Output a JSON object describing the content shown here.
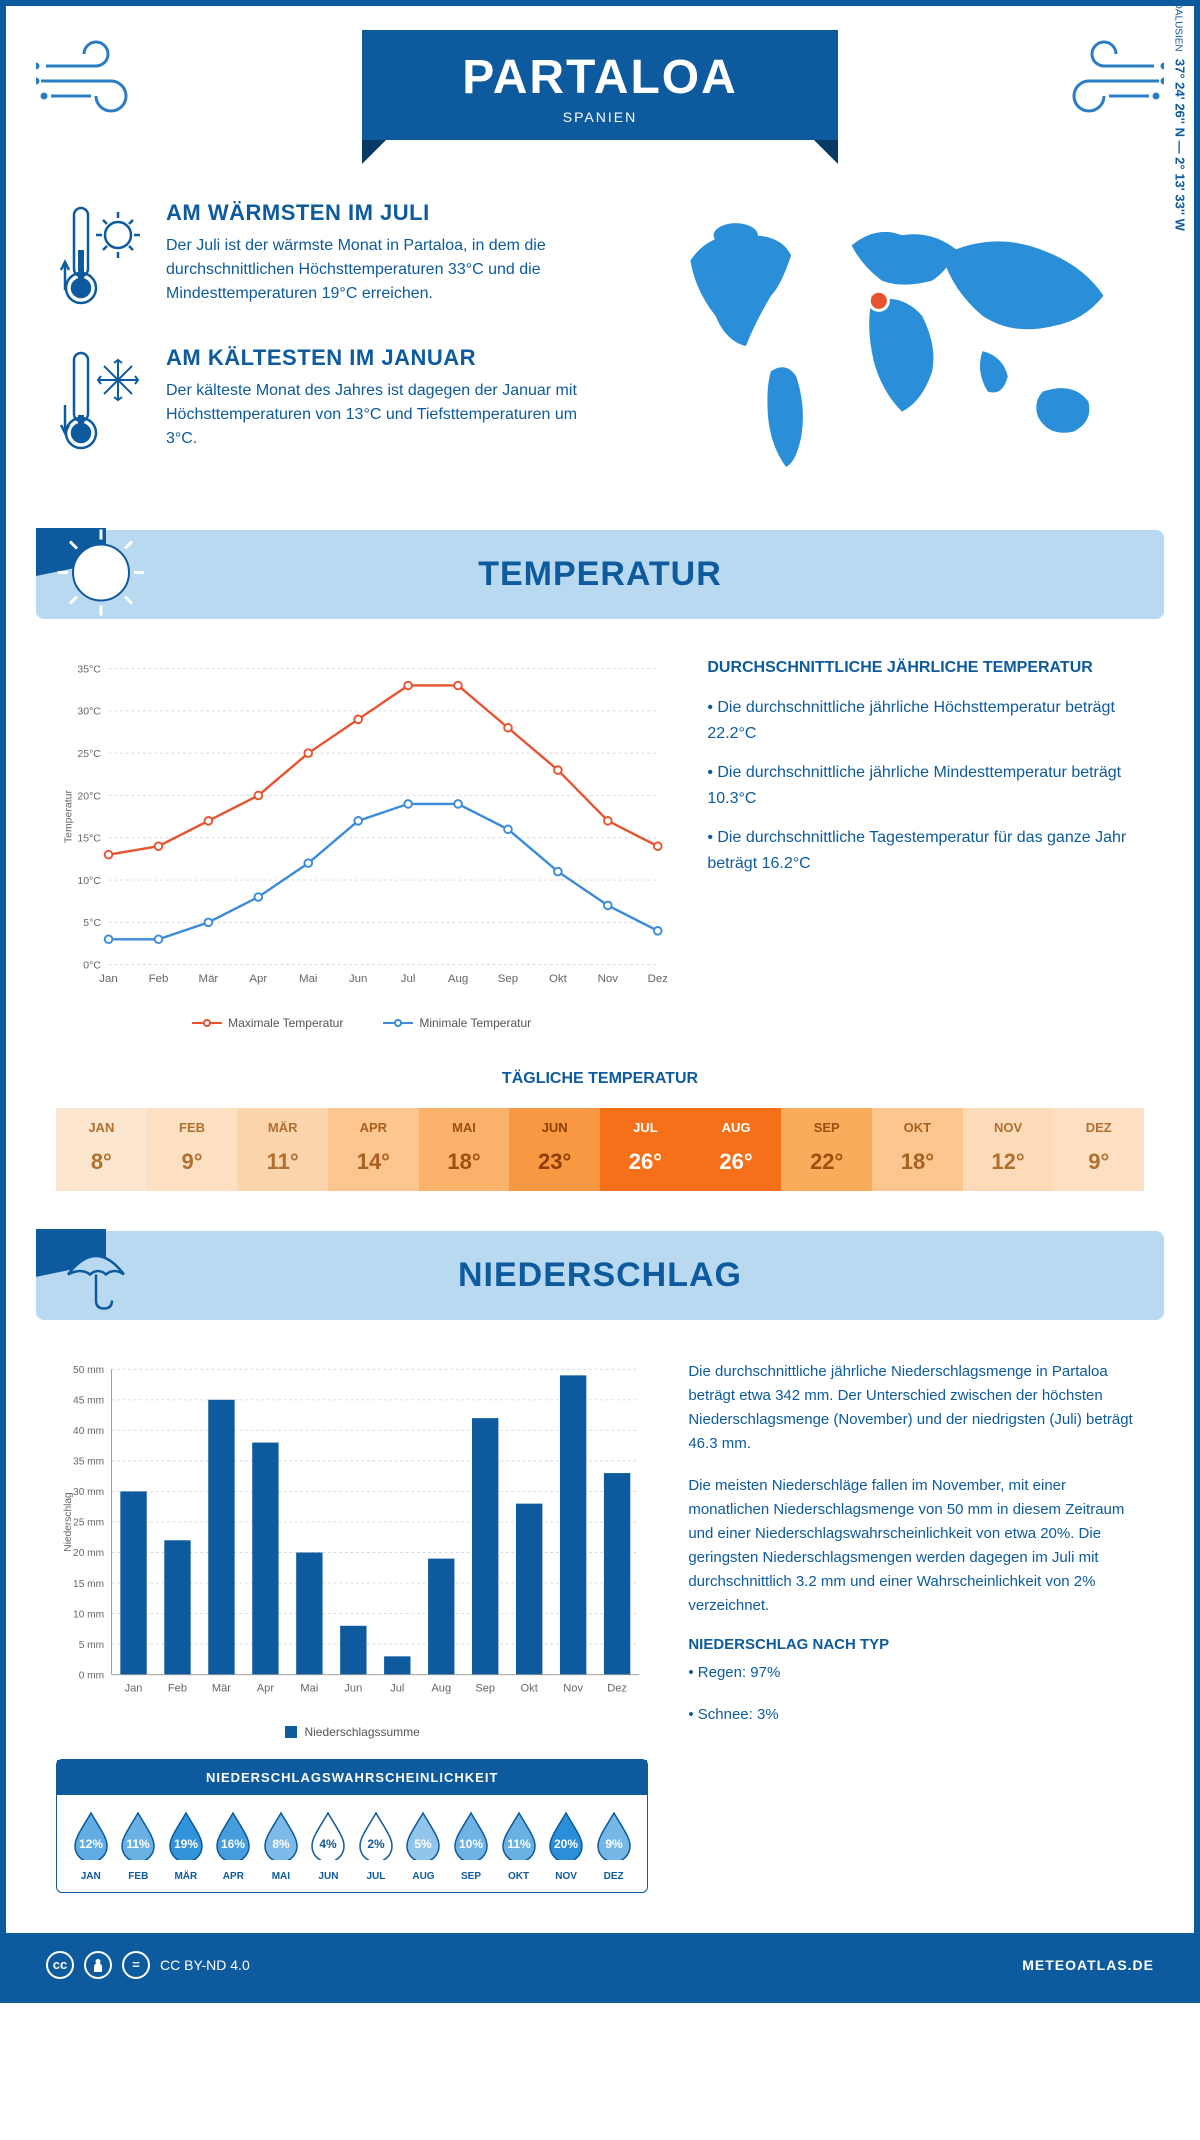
{
  "header": {
    "title": "PARTALOA",
    "subtitle": "SPANIEN"
  },
  "coords": {
    "text": "37° 24' 26'' N — 2° 13' 33'' W",
    "region": "ANDALUSIEN"
  },
  "facts": {
    "warmest": {
      "title": "AM WÄRMSTEN IM JULI",
      "text": "Der Juli ist der wärmste Monat in Partaloa, in dem die durchschnittlichen Höchsttemperaturen 33°C und die Mindesttemperaturen 19°C erreichen."
    },
    "coldest": {
      "title": "AM KÄLTESTEN IM JANUAR",
      "text": "Der kälteste Monat des Jahres ist dagegen der Januar mit Höchsttemperaturen von 13°C und Tiefsttemperaturen um 3°C."
    }
  },
  "sections": {
    "temp": "TEMPERATUR",
    "precip": "NIEDERSCHLAG"
  },
  "tempChart": {
    "type": "line",
    "months": [
      "Jan",
      "Feb",
      "Mär",
      "Apr",
      "Mai",
      "Jun",
      "Jul",
      "Aug",
      "Sep",
      "Okt",
      "Nov",
      "Dez"
    ],
    "max": [
      13,
      14,
      17,
      20,
      25,
      29,
      33,
      33,
      28,
      23,
      17,
      14
    ],
    "min": [
      3,
      3,
      5,
      8,
      12,
      17,
      19,
      19,
      16,
      11,
      7,
      4
    ],
    "maxColor": "#e8532f",
    "minColor": "#3a8bd8",
    "ylim": [
      0,
      35
    ],
    "ytick_step": 5,
    "ylabel": "Temperatur",
    "grid_color": "#d8d8d8",
    "legend": {
      "max": "Maximale Temperatur",
      "min": "Minimale Temperatur"
    }
  },
  "tempFacts": {
    "title": "DURCHSCHNITTLICHE JÄHRLICHE TEMPERATUR",
    "p1": "• Die durchschnittliche jährliche Höchsttemperatur beträgt 22.2°C",
    "p2": "• Die durchschnittliche jährliche Mindesttemperatur beträgt 10.3°C",
    "p3": "• Die durchschnittliche Tagestemperatur für das ganze Jahr beträgt 16.2°C"
  },
  "dailyTemp": {
    "title": "TÄGLICHE TEMPERATUR",
    "months": [
      "JAN",
      "FEB",
      "MÄR",
      "APR",
      "MAI",
      "JUN",
      "JUL",
      "AUG",
      "SEP",
      "OKT",
      "NOV",
      "DEZ"
    ],
    "values": [
      "8°",
      "9°",
      "11°",
      "14°",
      "18°",
      "23°",
      "26°",
      "26°",
      "22°",
      "18°",
      "12°",
      "9°"
    ],
    "cellColors": [
      "#fde6cf",
      "#fde0c2",
      "#fdd5ac",
      "#fcc68e",
      "#fbb26a",
      "#f99842",
      "#f6701a",
      "#f6701a",
      "#faab5c",
      "#fcc68e",
      "#fddbb8",
      "#fde0c2"
    ],
    "textColors": [
      "#b07030",
      "#b07030",
      "#b07030",
      "#a86020",
      "#9e5010",
      "#8e3e00",
      "#ffffff",
      "#ffffff",
      "#9e5010",
      "#a86020",
      "#b07030",
      "#b07030"
    ]
  },
  "precipChart": {
    "type": "bar",
    "months": [
      "Jan",
      "Feb",
      "Mär",
      "Apr",
      "Mai",
      "Jun",
      "Jul",
      "Aug",
      "Sep",
      "Okt",
      "Nov",
      "Dez"
    ],
    "values": [
      30,
      22,
      45,
      38,
      20,
      8,
      3,
      19,
      42,
      28,
      49,
      33
    ],
    "color": "#0d5a9e",
    "ylim": [
      0,
      50
    ],
    "ytick_step": 5,
    "ylabel": "Niederschlag",
    "grid_color": "#d8d8d8",
    "legend": "Niederschlagssumme"
  },
  "precipProb": {
    "title": "NIEDERSCHLAGSWAHRSCHEINLICHKEIT",
    "months": [
      "JAN",
      "FEB",
      "MÄR",
      "APR",
      "MAI",
      "JUN",
      "JUL",
      "AUG",
      "SEP",
      "OKT",
      "NOV",
      "DEZ"
    ],
    "values": [
      "12%",
      "11%",
      "19%",
      "16%",
      "8%",
      "4%",
      "2%",
      "5%",
      "10%",
      "11%",
      "20%",
      "9%"
    ],
    "nums": [
      12,
      11,
      19,
      16,
      8,
      4,
      2,
      5,
      10,
      11,
      20,
      9
    ]
  },
  "precipText": {
    "p1": "Die durchschnittliche jährliche Niederschlagsmenge in Partaloa beträgt etwa 342 mm. Der Unterschied zwischen der höchsten Niederschlagsmenge (November) und der niedrigsten (Juli) beträgt 46.3 mm.",
    "p2": "Die meisten Niederschläge fallen im November, mit einer monatlichen Niederschlagsmenge von 50 mm in diesem Zeitraum und einer Niederschlagswahrscheinlichkeit von etwa 20%. Die geringsten Niederschlagsmengen werden dagegen im Juli mit durchschnittlich 3.2 mm und einer Wahrscheinlichkeit von 2% verzeichnet.",
    "typeTitle": "NIEDERSCHLAG NACH TYP",
    "type1": "• Regen: 97%",
    "type2": "• Schnee: 3%"
  },
  "footer": {
    "license": "CC BY-ND 4.0",
    "site": "METEOATLAS.DE"
  },
  "colors": {
    "primary": "#0d5a9e",
    "lightBlue": "#b8d9f0",
    "mapBlue": "#2a8fd8"
  }
}
